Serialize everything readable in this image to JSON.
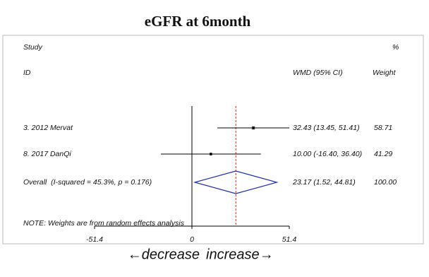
{
  "chart_data": {
    "type": "forest",
    "title": "eGFR at 6month",
    "headers": {
      "study": "Study",
      "id": "ID",
      "effect": "WMD (95% CI)",
      "percent": "%",
      "weight": "Weight"
    },
    "categories": [
      "3. 2012 Mervat",
      "8. 2017 DanQi"
    ],
    "values": [
      32.43,
      10.0
    ],
    "lower": [
      13.45,
      -16.4
    ],
    "upper": [
      51.41,
      36.4
    ],
    "value_labels": [
      "32.43 (13.45, 51.41)",
      "10.00 (-16.40, 36.40)"
    ],
    "weights": [
      58.71,
      41.29
    ],
    "overall": {
      "label": "Overall  (I-squared = 45.3%, p = 0.176)",
      "value": 23.17,
      "lower": 1.52,
      "upper": 44.81,
      "value_label": "23.17 (1.52, 44.81)",
      "weight": {
        "value": 100,
        "label": "100.00"
      }
    },
    "note": "NOTE: Weights are from random effects analysis",
    "xlim": [
      -51.4,
      51.4
    ],
    "xticks": [
      -51.4,
      0,
      51.4
    ],
    "xlabel_left": "←decrease",
    "xlabel_right": "increase→",
    "color": "#000000",
    "reference_line_color": "#c0392b",
    "diamond_color": "#1f2fb0"
  }
}
